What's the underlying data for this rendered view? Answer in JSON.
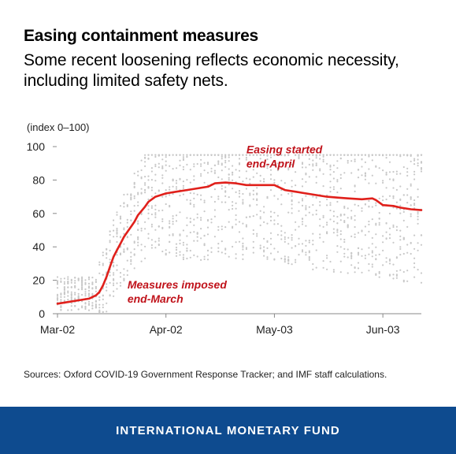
{
  "header": {
    "title": "Easing containment measures",
    "subtitle": "Some recent loosening reflects economic necessity, including limited safety nets."
  },
  "footer": {
    "source": "Sources: Oxford COVID-19 Government Response Tracker; and IMF staff calculations.",
    "org": "INTERNATIONAL MONETARY FUND"
  },
  "colors": {
    "line": "#e0201b",
    "annotation": "#c0121a",
    "dots": "#c8c8c8",
    "footer_bg": "#0e4b8f"
  },
  "chart_data": {
    "type": "line",
    "unit_label": "(index 0–100)",
    "xlabel": "",
    "ylabel": "",
    "ylim": [
      0,
      100
    ],
    "yticks": [
      0,
      20,
      40,
      60,
      80,
      100
    ],
    "xlim": [
      "2020-03-02",
      "2020-06-14"
    ],
    "xticks": [
      {
        "date": "2020-03-02",
        "label": "Mar-02"
      },
      {
        "date": "2020-04-02",
        "label": "Apr-02"
      },
      {
        "date": "2020-05-03",
        "label": "May-03"
      },
      {
        "date": "2020-06-03",
        "label": "Jun-03"
      }
    ],
    "grid": false,
    "series": [
      {
        "name": "",
        "points": [
          {
            "x": "2020-03-02",
            "y": 6
          },
          {
            "x": "2020-03-05",
            "y": 7
          },
          {
            "x": "2020-03-08",
            "y": 8
          },
          {
            "x": "2020-03-11",
            "y": 9
          },
          {
            "x": "2020-03-13",
            "y": 11
          },
          {
            "x": "2020-03-14",
            "y": 13
          },
          {
            "x": "2020-03-15",
            "y": 17
          },
          {
            "x": "2020-03-16",
            "y": 22
          },
          {
            "x": "2020-03-17",
            "y": 28
          },
          {
            "x": "2020-03-18",
            "y": 34
          },
          {
            "x": "2020-03-19",
            "y": 38
          },
          {
            "x": "2020-03-20",
            "y": 42
          },
          {
            "x": "2020-03-21",
            "y": 46
          },
          {
            "x": "2020-03-22",
            "y": 49
          },
          {
            "x": "2020-03-23",
            "y": 52
          },
          {
            "x": "2020-03-24",
            "y": 55
          },
          {
            "x": "2020-03-25",
            "y": 59
          },
          {
            "x": "2020-03-27",
            "y": 64
          },
          {
            "x": "2020-03-28",
            "y": 67
          },
          {
            "x": "2020-03-30",
            "y": 70
          },
          {
            "x": "2020-04-02",
            "y": 72
          },
          {
            "x": "2020-04-05",
            "y": 73
          },
          {
            "x": "2020-04-08",
            "y": 74
          },
          {
            "x": "2020-04-11",
            "y": 75
          },
          {
            "x": "2020-04-14",
            "y": 76
          },
          {
            "x": "2020-04-16",
            "y": 78
          },
          {
            "x": "2020-04-19",
            "y": 78.5
          },
          {
            "x": "2020-04-22",
            "y": 78
          },
          {
            "x": "2020-04-25",
            "y": 77
          },
          {
            "x": "2020-04-28",
            "y": 77
          },
          {
            "x": "2020-05-01",
            "y": 77
          },
          {
            "x": "2020-05-03",
            "y": 77
          },
          {
            "x": "2020-05-04",
            "y": 76
          },
          {
            "x": "2020-05-06",
            "y": 74
          },
          {
            "x": "2020-05-09",
            "y": 73
          },
          {
            "x": "2020-05-12",
            "y": 72
          },
          {
            "x": "2020-05-15",
            "y": 71
          },
          {
            "x": "2020-05-18",
            "y": 70
          },
          {
            "x": "2020-05-21",
            "y": 69.5
          },
          {
            "x": "2020-05-24",
            "y": 69
          },
          {
            "x": "2020-05-28",
            "y": 68.5
          },
          {
            "x": "2020-05-31",
            "y": 69
          },
          {
            "x": "2020-06-01",
            "y": 68
          },
          {
            "x": "2020-06-03",
            "y": 65
          },
          {
            "x": "2020-06-06",
            "y": 64.5
          },
          {
            "x": "2020-06-08",
            "y": 63.5
          },
          {
            "x": "2020-06-11",
            "y": 62.5
          },
          {
            "x": "2020-06-14",
            "y": 62
          }
        ]
      }
    ],
    "annotations": [
      {
        "text": [
          "Measures imposed",
          "end-March"
        ],
        "x": "2020-03-22",
        "y": 15
      },
      {
        "text": [
          "Easing started",
          "end-April"
        ],
        "x": "2020-04-25",
        "y": 96
      }
    ]
  }
}
